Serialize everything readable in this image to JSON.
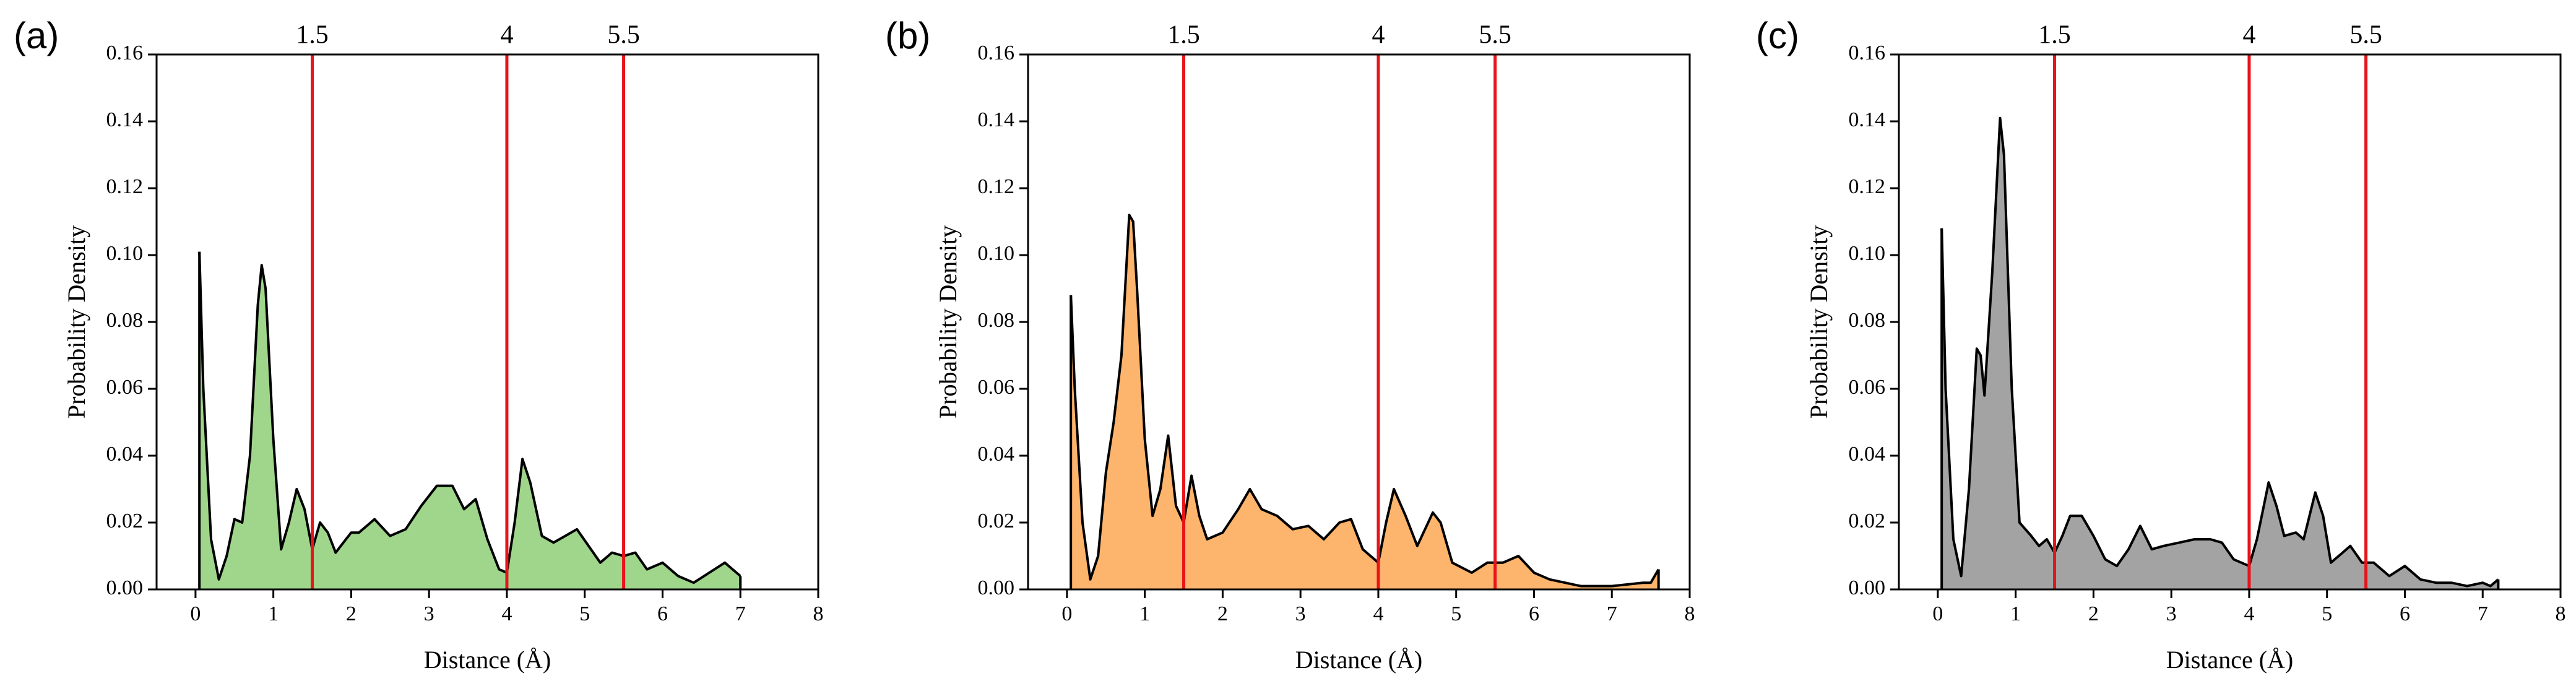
{
  "chart_data": [
    {
      "type": "area",
      "panel_label": "(a)",
      "xlabel": "Distance (Å)",
      "ylabel": "Probability Density",
      "color": "#9fd68c",
      "line_color": "#000000",
      "vline_color": "#e8141a",
      "xlim": [
        -0.5,
        8
      ],
      "ylim": [
        0,
        0.16
      ],
      "xticks": [
        0,
        1,
        2,
        3,
        4,
        5,
        6,
        7,
        8
      ],
      "yticks": [
        {
          "value": 0,
          "label": "0.00"
        },
        {
          "value": 0.02,
          "label": "0.02"
        },
        {
          "value": 0.04,
          "label": "0.04"
        },
        {
          "value": 0.06,
          "label": "0.06"
        },
        {
          "value": 0.08,
          "label": "0.08"
        },
        {
          "value": 0.1,
          "label": "0.10"
        },
        {
          "value": 0.12,
          "label": "0.12"
        },
        {
          "value": 0.14,
          "label": "0.14"
        },
        {
          "value": 0.16,
          "label": "0.16"
        }
      ],
      "vlines": [
        1.5,
        4,
        5.5
      ],
      "x": [
        0.05,
        0.1,
        0.2,
        0.3,
        0.4,
        0.5,
        0.6,
        0.7,
        0.8,
        0.85,
        0.9,
        1.0,
        1.1,
        1.2,
        1.3,
        1.4,
        1.5,
        1.6,
        1.7,
        1.8,
        1.9,
        2.0,
        2.1,
        2.3,
        2.5,
        2.7,
        2.9,
        3.1,
        3.3,
        3.45,
        3.6,
        3.75,
        3.9,
        4.0,
        4.1,
        4.2,
        4.3,
        4.45,
        4.6,
        4.75,
        4.9,
        5.05,
        5.2,
        5.35,
        5.5,
        5.65,
        5.8,
        6.0,
        6.2,
        6.4,
        6.6,
        6.8,
        7.0
      ],
      "values": [
        0.101,
        0.06,
        0.015,
        0.003,
        0.01,
        0.021,
        0.02,
        0.04,
        0.085,
        0.097,
        0.09,
        0.045,
        0.012,
        0.02,
        0.03,
        0.024,
        0.012,
        0.02,
        0.017,
        0.011,
        0.014,
        0.017,
        0.017,
        0.021,
        0.016,
        0.018,
        0.025,
        0.031,
        0.031,
        0.024,
        0.027,
        0.015,
        0.006,
        0.005,
        0.02,
        0.039,
        0.032,
        0.016,
        0.014,
        0.016,
        0.018,
        0.013,
        0.008,
        0.011,
        0.01,
        0.011,
        0.006,
        0.008,
        0.004,
        0.002,
        0.005,
        0.008,
        0.004
      ]
    },
    {
      "type": "area",
      "panel_label": "(b)",
      "xlabel": "Distance (Å)",
      "ylabel": "Probability Density",
      "color": "#fdb46c",
      "line_color": "#000000",
      "vline_color": "#e8141a",
      "xlim": [
        -0.5,
        8
      ],
      "ylim": [
        0,
        0.16
      ],
      "xticks": [
        0,
        1,
        2,
        3,
        4,
        5,
        6,
        7,
        8
      ],
      "yticks": [
        {
          "value": 0,
          "label": "0.00"
        },
        {
          "value": 0.02,
          "label": "0.02"
        },
        {
          "value": 0.04,
          "label": "0.04"
        },
        {
          "value": 0.06,
          "label": "0.06"
        },
        {
          "value": 0.08,
          "label": "0.08"
        },
        {
          "value": 0.1,
          "label": "0.10"
        },
        {
          "value": 0.12,
          "label": "0.12"
        },
        {
          "value": 0.14,
          "label": "0.14"
        },
        {
          "value": 0.16,
          "label": "0.16"
        }
      ],
      "vlines": [
        1.5,
        4,
        5.5
      ],
      "x": [
        0.05,
        0.1,
        0.2,
        0.3,
        0.4,
        0.5,
        0.6,
        0.7,
        0.8,
        0.85,
        0.9,
        1.0,
        1.1,
        1.2,
        1.3,
        1.4,
        1.5,
        1.6,
        1.7,
        1.8,
        2.0,
        2.2,
        2.35,
        2.5,
        2.7,
        2.9,
        3.1,
        3.3,
        3.5,
        3.65,
        3.8,
        4.0,
        4.1,
        4.2,
        4.35,
        4.5,
        4.7,
        4.8,
        4.95,
        5.2,
        5.4,
        5.6,
        5.8,
        6.0,
        6.2,
        6.4,
        6.6,
        7.0,
        7.4,
        7.5,
        7.6
      ],
      "values": [
        0.088,
        0.06,
        0.02,
        0.003,
        0.01,
        0.035,
        0.05,
        0.07,
        0.112,
        0.11,
        0.09,
        0.045,
        0.022,
        0.03,
        0.046,
        0.025,
        0.02,
        0.034,
        0.022,
        0.015,
        0.017,
        0.024,
        0.03,
        0.024,
        0.022,
        0.018,
        0.019,
        0.015,
        0.02,
        0.021,
        0.012,
        0.008,
        0.02,
        0.03,
        0.022,
        0.013,
        0.023,
        0.02,
        0.008,
        0.005,
        0.008,
        0.008,
        0.01,
        0.005,
        0.003,
        0.002,
        0.001,
        0.001,
        0.002,
        0.002,
        0.006
      ]
    },
    {
      "type": "area",
      "panel_label": "(c)",
      "xlabel": "Distance (Å)",
      "ylabel": "Probability Density",
      "color": "#a3a3a3",
      "line_color": "#000000",
      "vline_color": "#e8141a",
      "xlim": [
        -0.5,
        8
      ],
      "ylim": [
        0,
        0.16
      ],
      "xticks": [
        0,
        1,
        2,
        3,
        4,
        5,
        6,
        7,
        8
      ],
      "yticks": [
        {
          "value": 0,
          "label": "0.00"
        },
        {
          "value": 0.02,
          "label": "0.02"
        },
        {
          "value": 0.04,
          "label": "0.04"
        },
        {
          "value": 0.06,
          "label": "0.06"
        },
        {
          "value": 0.08,
          "label": "0.08"
        },
        {
          "value": 0.1,
          "label": "0.10"
        },
        {
          "value": 0.12,
          "label": "0.12"
        },
        {
          "value": 0.14,
          "label": "0.14"
        },
        {
          "value": 0.16,
          "label": "0.16"
        }
      ],
      "vlines": [
        1.5,
        4,
        5.5
      ],
      "x": [
        0.05,
        0.1,
        0.2,
        0.3,
        0.4,
        0.5,
        0.55,
        0.6,
        0.7,
        0.8,
        0.85,
        0.95,
        1.05,
        1.2,
        1.3,
        1.4,
        1.5,
        1.6,
        1.7,
        1.85,
        2.0,
        2.15,
        2.3,
        2.45,
        2.6,
        2.75,
        2.9,
        3.1,
        3.3,
        3.5,
        3.65,
        3.8,
        4.0,
        4.1,
        4.25,
        4.35,
        4.45,
        4.6,
        4.7,
        4.85,
        4.95,
        5.05,
        5.2,
        5.3,
        5.45,
        5.6,
        5.8,
        6.0,
        6.2,
        6.4,
        6.6,
        6.8,
        7.0,
        7.1,
        7.2
      ],
      "values": [
        0.108,
        0.06,
        0.015,
        0.004,
        0.03,
        0.072,
        0.07,
        0.058,
        0.095,
        0.141,
        0.13,
        0.06,
        0.02,
        0.016,
        0.013,
        0.015,
        0.011,
        0.016,
        0.022,
        0.022,
        0.016,
        0.009,
        0.007,
        0.012,
        0.019,
        0.012,
        0.013,
        0.014,
        0.015,
        0.015,
        0.014,
        0.009,
        0.007,
        0.015,
        0.032,
        0.025,
        0.016,
        0.017,
        0.015,
        0.029,
        0.022,
        0.008,
        0.011,
        0.013,
        0.008,
        0.008,
        0.004,
        0.007,
        0.003,
        0.002,
        0.002,
        0.001,
        0.002,
        0.001,
        0.003
      ]
    }
  ]
}
